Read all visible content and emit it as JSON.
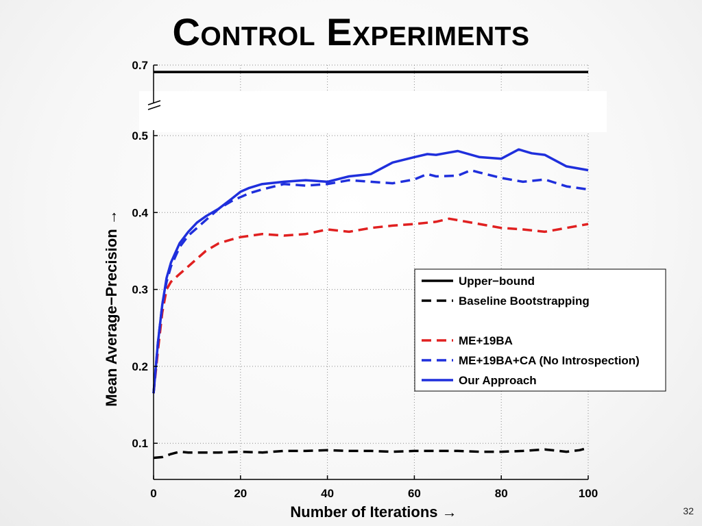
{
  "slide": {
    "title": "Control Experiments",
    "page_number": "32"
  },
  "chart_data": {
    "type": "line",
    "xlabel": "Number of Iterations →",
    "ylabel": "Mean Average−Precision →",
    "xlim": [
      0,
      100
    ],
    "ylim": [
      0.05,
      0.7
    ],
    "axis_break": [
      0.52,
      0.62
    ],
    "x_ticks": [
      0,
      20,
      40,
      60,
      80,
      100
    ],
    "x_tick_labels": [
      "0",
      "20",
      "40",
      "60",
      "80",
      "100"
    ],
    "y_ticks": [
      0.1,
      0.2,
      0.3,
      0.4,
      0.5,
      0.7
    ],
    "y_tick_labels": [
      "0.1",
      "0.2",
      "0.3",
      "0.4",
      "0.5",
      "0.7"
    ],
    "grid": true,
    "legend_position": "right",
    "series": [
      {
        "name": "Upper−bound",
        "color": "#000000",
        "dash": "solid",
        "x": [
          0,
          100
        ],
        "y": [
          0.665,
          0.665
        ]
      },
      {
        "name": "Baseline Bootstrapping",
        "color": "#000000",
        "dash": "dashed",
        "x": [
          0,
          2,
          4,
          6,
          8,
          10,
          15,
          20,
          25,
          30,
          35,
          40,
          45,
          50,
          55,
          60,
          65,
          70,
          75,
          80,
          85,
          90,
          95,
          98,
          100
        ],
        "y": [
          0.081,
          0.082,
          0.086,
          0.089,
          0.088,
          0.088,
          0.088,
          0.089,
          0.088,
          0.09,
          0.09,
          0.091,
          0.09,
          0.09,
          0.089,
          0.09,
          0.09,
          0.09,
          0.089,
          0.089,
          0.09,
          0.092,
          0.089,
          0.091,
          0.094
        ]
      },
      {
        "name": "ME+19BA",
        "color": "#e02020",
        "dash": "dashed",
        "x": [
          0,
          1,
          2,
          3,
          4,
          6,
          8,
          10,
          12,
          15,
          18,
          20,
          25,
          30,
          35,
          40,
          45,
          50,
          55,
          60,
          65,
          68,
          70,
          75,
          80,
          85,
          90,
          95,
          100
        ],
        "y": [
          0.165,
          0.22,
          0.27,
          0.3,
          0.31,
          0.32,
          0.33,
          0.34,
          0.35,
          0.36,
          0.365,
          0.368,
          0.372,
          0.37,
          0.372,
          0.378,
          0.375,
          0.38,
          0.383,
          0.385,
          0.388,
          0.392,
          0.39,
          0.385,
          0.38,
          0.378,
          0.375,
          0.38,
          0.385
        ]
      },
      {
        "name": "ME+19BA+CA (No Introspection)",
        "color": "#1f2fdc",
        "dash": "dashed",
        "x": [
          0,
          1,
          2,
          3,
          4,
          6,
          8,
          10,
          12,
          15,
          18,
          20,
          22,
          25,
          30,
          35,
          40,
          45,
          50,
          55,
          60,
          63,
          65,
          70,
          73,
          75,
          80,
          85,
          90,
          95,
          100
        ],
        "y": [
          0.165,
          0.23,
          0.28,
          0.31,
          0.33,
          0.355,
          0.37,
          0.38,
          0.39,
          0.405,
          0.415,
          0.42,
          0.425,
          0.43,
          0.437,
          0.435,
          0.437,
          0.442,
          0.44,
          0.438,
          0.443,
          0.45,
          0.447,
          0.448,
          0.455,
          0.452,
          0.445,
          0.44,
          0.443,
          0.434,
          0.43
        ]
      },
      {
        "name": "Our Approach",
        "color": "#1f2fdc",
        "dash": "solid",
        "x": [
          0,
          1,
          2,
          3,
          4,
          6,
          8,
          10,
          12,
          15,
          18,
          20,
          22,
          25,
          30,
          35,
          40,
          45,
          50,
          55,
          60,
          63,
          65,
          68,
          70,
          75,
          80,
          84,
          87,
          90,
          95,
          100
        ],
        "y": [
          0.165,
          0.23,
          0.28,
          0.315,
          0.335,
          0.36,
          0.375,
          0.387,
          0.395,
          0.405,
          0.418,
          0.427,
          0.432,
          0.437,
          0.44,
          0.442,
          0.44,
          0.447,
          0.45,
          0.465,
          0.472,
          0.476,
          0.475,
          0.478,
          0.48,
          0.472,
          0.47,
          0.482,
          0.477,
          0.475,
          0.46,
          0.455
        ]
      }
    ]
  }
}
